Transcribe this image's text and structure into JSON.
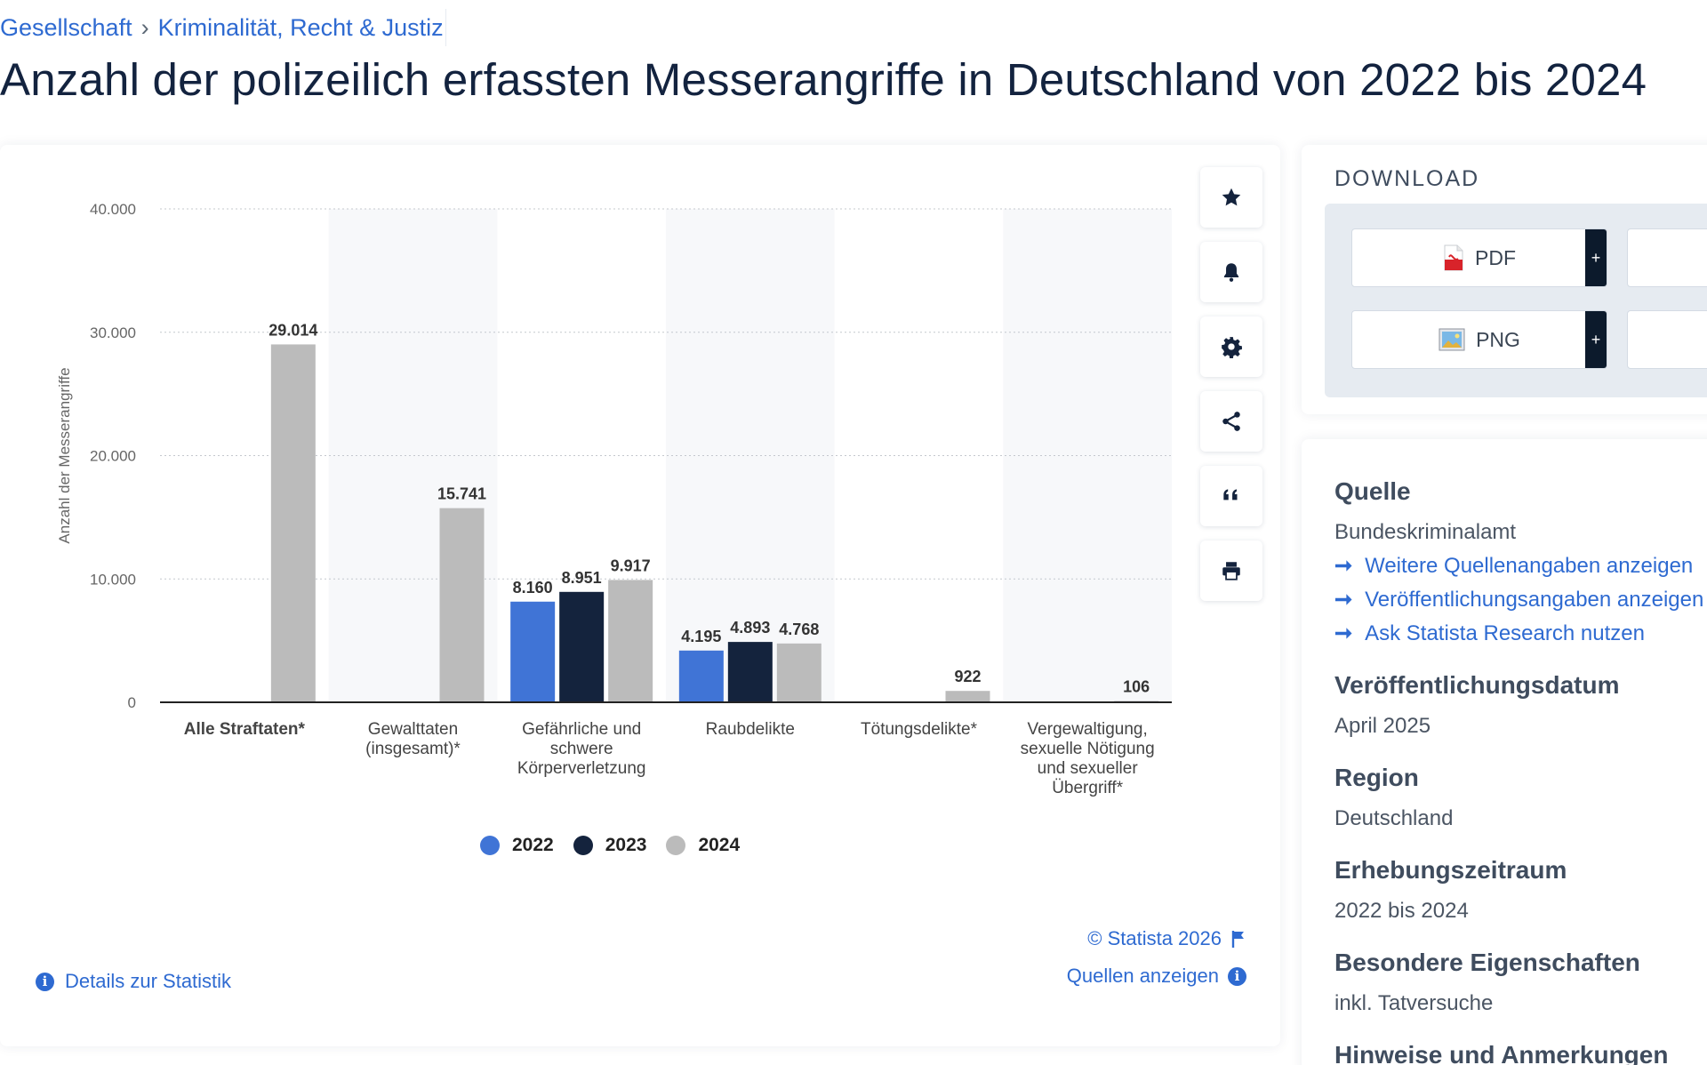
{
  "breadcrumb": {
    "items": [
      "Gesellschaft",
      "Kriminalität, Recht & Justiz"
    ],
    "separator": "›"
  },
  "title": "Anzahl der polizeilich erfassten Messerangriffe in Deutschland von 2022 bis 2024",
  "chart_data": {
    "type": "bar",
    "title": "",
    "xlabel": "",
    "ylabel": "Anzahl der Messerangriffe",
    "ylim": [
      0,
      40000
    ],
    "yticks": [
      0,
      10000,
      20000,
      30000,
      40000
    ],
    "ytick_labels": [
      "0",
      "10.000",
      "20.000",
      "30.000",
      "40.000"
    ],
    "grid": true,
    "legend": "bottom",
    "categories": [
      "Alle Straftaten*",
      "Gewalttaten (insgesamt)*",
      "Gefährliche und schwere Körperverletzung",
      "Raubdelikte",
      "Tötungsdelikte*",
      "Vergewaltigung, sexuelle Nötigung und sexueller Übergriff*"
    ],
    "category_label_lines": [
      [
        "Alle Straftaten*"
      ],
      [
        "Gewalttaten",
        "(insgesamt)*"
      ],
      [
        "Gefährliche und",
        "schwere",
        "Körperverletzung"
      ],
      [
        "Raubdelikte"
      ],
      [
        "Tötungsdelikte*"
      ],
      [
        "Vergewaltigung,",
        "sexuelle Nötigung",
        "und sexueller",
        "Übergriff*"
      ]
    ],
    "series": [
      {
        "name": "2022",
        "color": "#4074d6",
        "values": [
          null,
          null,
          8160,
          4195,
          null,
          null
        ],
        "labels": [
          null,
          null,
          "8.160",
          "4.195",
          null,
          null
        ]
      },
      {
        "name": "2023",
        "color": "#14233d",
        "values": [
          null,
          null,
          8951,
          4893,
          null,
          null
        ],
        "labels": [
          null,
          null,
          "8.951",
          "4.893",
          null,
          null
        ]
      },
      {
        "name": "2024",
        "color": "#bbbbbb",
        "values": [
          29014,
          15741,
          9917,
          4768,
          922,
          106
        ],
        "labels": [
          "29.014",
          "15.741",
          "9.917",
          "4.768",
          "922",
          "106"
        ]
      }
    ]
  },
  "toolbar": {
    "icons": [
      "star-icon",
      "bell-icon",
      "gear-icon",
      "share-icon",
      "quote-icon",
      "print-icon"
    ]
  },
  "footer": {
    "copyright": "© Statista 2026",
    "sources_link": "Quellen anzeigen",
    "details_link": "Details zur Statistik"
  },
  "download": {
    "title": "DOWNLOAD",
    "buttons": [
      {
        "label": "PDF",
        "icon": "pdf-icon",
        "plus": "+"
      },
      {
        "label": "PNG",
        "icon": "image-icon",
        "plus": "+"
      }
    ]
  },
  "info": {
    "quelle_heading": "Quelle",
    "quelle_value": "Bundeskriminalamt",
    "links": [
      "Weitere Quellenangaben anzeigen",
      "Veröffentlichungsangaben anzeigen",
      "Ask Statista Research nutzen"
    ],
    "pub_date_heading": "Veröffentlichungsdatum",
    "pub_date_value": "April 2025",
    "region_heading": "Region",
    "region_value": "Deutschland",
    "period_heading": "Erhebungszeitraum",
    "period_value": "2022 bis 2024",
    "properties_heading": "Besondere Eigenschaften",
    "properties_value": "inkl. Tatversuche",
    "notes_heading": "Hinweise und Anmerkungen"
  },
  "colors": {
    "link": "#2e6ad1",
    "title": "#13233f",
    "series_2022": "#4074d6",
    "series_2023": "#14233d",
    "series_2024": "#bbbbbb"
  }
}
